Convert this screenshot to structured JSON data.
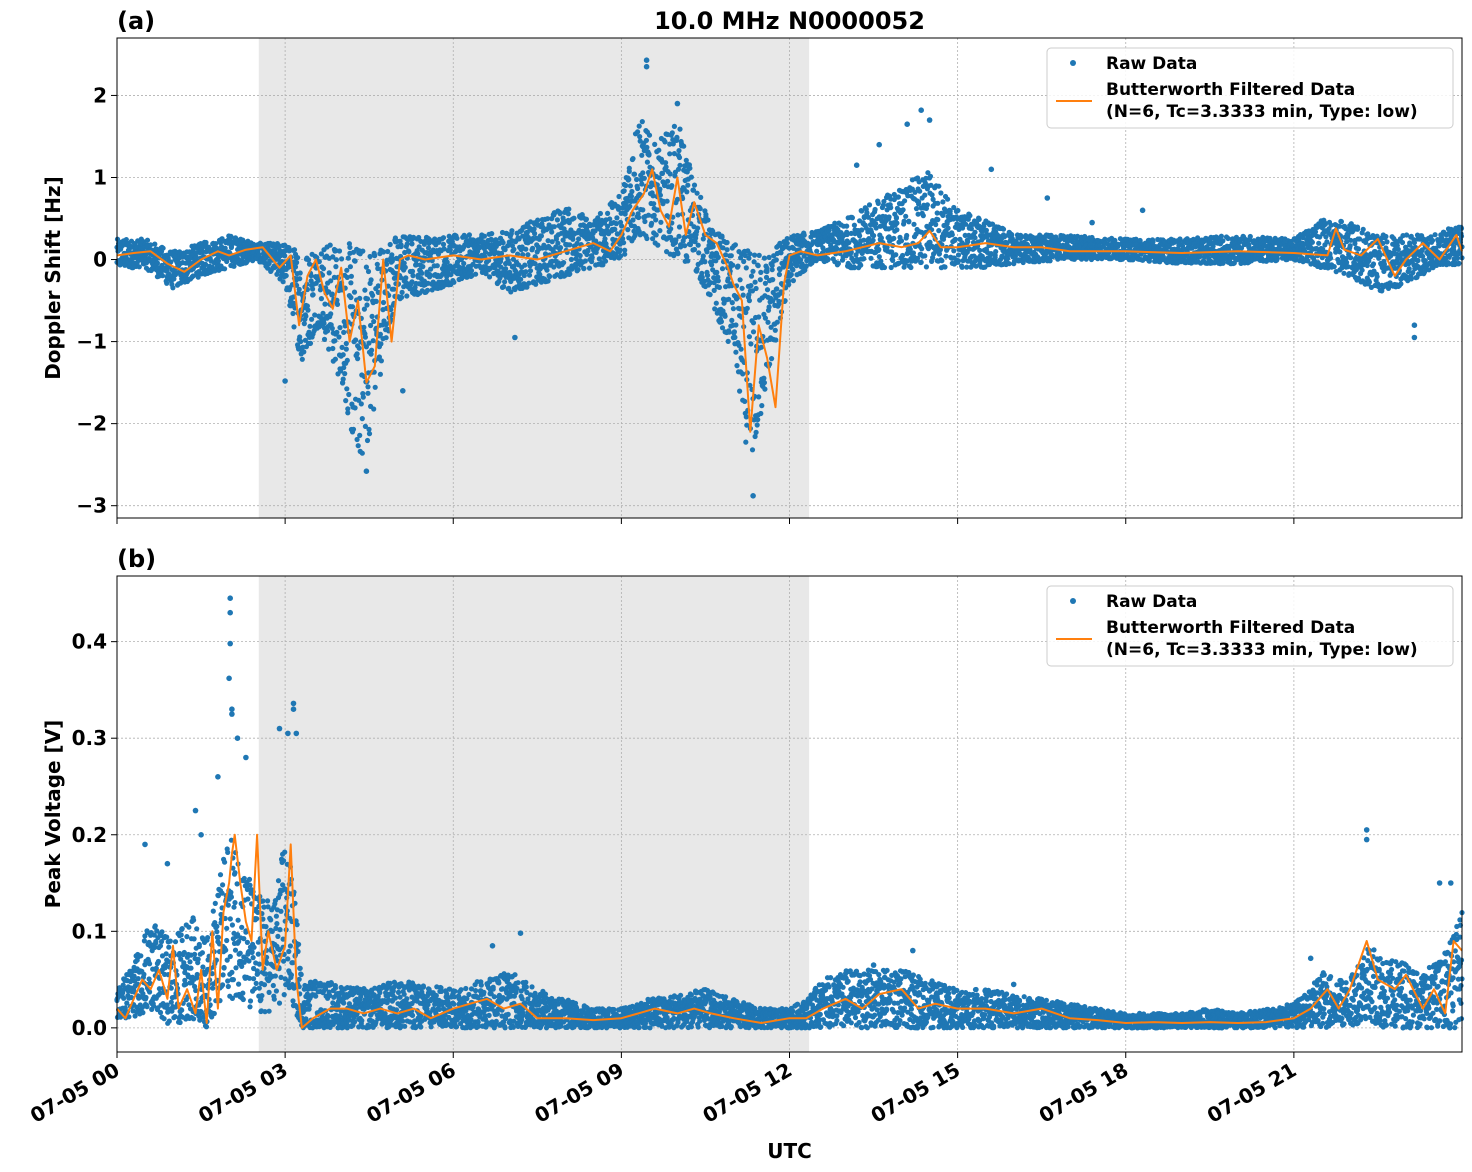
{
  "figure": {
    "xlabel": "UTC",
    "colors": {
      "raw": "#1f77b4",
      "filtered": "#ff7f0e",
      "shade": "#e8e8e8",
      "grid": "#b0b0b0"
    }
  },
  "chart_data": [
    {
      "type": "scatter",
      "panel_label": "(a)",
      "title": "10.0 MHz N0000052",
      "ylabel": "Doppler Shift [Hz]",
      "ylim": [
        -3.15,
        2.7
      ],
      "yticks": [
        2,
        1,
        0,
        -1,
        -2,
        -3
      ],
      "ytick_labels": [
        "2",
        "1",
        "0",
        "−1",
        "−2",
        "−3"
      ],
      "xlim_hours": [
        0,
        24
      ],
      "xticks_hours": [
        0,
        3,
        6,
        9,
        12,
        15,
        18,
        21
      ],
      "xtick_labels": [
        "07-05 00",
        "07-05 03",
        "07-05 06",
        "07-05 09",
        "07-05 12",
        "07-05 15",
        "07-05 18",
        "07-05 21"
      ],
      "shaded_interval_hours": [
        2.53,
        12.35
      ],
      "grid": true,
      "legend_position": "top-right",
      "legend": [
        "Raw Data",
        "Butterworth Filtered Data",
        "(N=6, Tc=3.3333 min, Type: low)"
      ],
      "series": [
        {
          "name": "Raw Data",
          "style": "points",
          "band": {
            "x": [
              0,
              0.5,
              1,
              1.5,
              2,
              2.5,
              3,
              3.3,
              3.6,
              4,
              4.3,
              4.5,
              4.8,
              5,
              5.5,
              6,
              6.5,
              7,
              7.5,
              8,
              8.5,
              9,
              9.3,
              9.6,
              10,
              10.3,
              10.6,
              11,
              11.3,
              11.6,
              12,
              12.5,
              13,
              13.5,
              14,
              14.5,
              15,
              15.5,
              16,
              17,
              18,
              19,
              20,
              21,
              21.5,
              22,
              22.5,
              23,
              23.5,
              24
            ],
            "low": [
              -0.1,
              -0.1,
              -0.35,
              -0.2,
              -0.1,
              0.0,
              -0.3,
              -1.3,
              -0.8,
              -1.5,
              -2.5,
              -2.2,
              -1.0,
              -0.5,
              -0.4,
              -0.3,
              -0.15,
              -0.4,
              -0.3,
              -0.2,
              -0.1,
              0.0,
              0.3,
              0.2,
              0.0,
              -0.1,
              -0.5,
              -1.2,
              -2.6,
              -1.5,
              -0.3,
              0.0,
              -0.1,
              -0.1,
              -0.1,
              -0.1,
              -0.1,
              -0.1,
              -0.05,
              0.0,
              0.0,
              -0.05,
              -0.05,
              0.0,
              -0.1,
              -0.2,
              -0.4,
              -0.3,
              -0.1,
              -0.05
            ],
            "high": [
              0.25,
              0.25,
              0.1,
              0.2,
              0.3,
              0.2,
              0.2,
              0.1,
              0.2,
              0.2,
              0.2,
              0.2,
              0.2,
              0.3,
              0.3,
              0.3,
              0.3,
              0.35,
              0.5,
              0.65,
              0.5,
              0.8,
              1.8,
              1.4,
              1.7,
              1.0,
              0.4,
              0.2,
              0.1,
              0.1,
              0.3,
              0.35,
              0.5,
              0.7,
              0.9,
              1.1,
              0.6,
              0.5,
              0.3,
              0.3,
              0.25,
              0.25,
              0.3,
              0.25,
              0.5,
              0.45,
              0.3,
              0.3,
              0.3,
              0.45
            ]
          },
          "outliers": [
            [
              9.45,
              2.43
            ],
            [
              9.45,
              2.35
            ],
            [
              10.0,
              1.9
            ],
            [
              14.35,
              1.82
            ],
            [
              14.5,
              1.7
            ],
            [
              14.1,
              1.65
            ],
            [
              13.6,
              1.4
            ],
            [
              13.2,
              1.15
            ],
            [
              15.6,
              1.1
            ],
            [
              16.6,
              0.75
            ],
            [
              23.15,
              -0.95
            ],
            [
              23.15,
              -0.8
            ],
            [
              11.35,
              -2.88
            ],
            [
              4.45,
              -2.58
            ],
            [
              3.0,
              -1.48
            ],
            [
              5.1,
              -1.6
            ],
            [
              7.1,
              -0.95
            ],
            [
              18.3,
              0.6
            ],
            [
              17.4,
              0.45
            ]
          ]
        },
        {
          "name": "Butterworth Filtered Data",
          "style": "line",
          "x": [
            0,
            0.3,
            0.6,
            0.9,
            1.2,
            1.5,
            1.8,
            2.0,
            2.3,
            2.6,
            2.9,
            3.1,
            3.25,
            3.4,
            3.55,
            3.7,
            3.85,
            4.0,
            4.15,
            4.3,
            4.45,
            4.6,
            4.75,
            4.9,
            5.05,
            5.2,
            5.5,
            6.0,
            6.5,
            7.0,
            7.5,
            8.0,
            8.5,
            8.8,
            9.0,
            9.2,
            9.4,
            9.55,
            9.7,
            9.85,
            10.0,
            10.15,
            10.3,
            10.5,
            10.7,
            10.9,
            11.0,
            11.15,
            11.3,
            11.45,
            11.6,
            11.75,
            11.9,
            12.0,
            12.2,
            12.5,
            13.0,
            13.3,
            13.6,
            14.0,
            14.3,
            14.5,
            14.7,
            15.0,
            15.5,
            16.0,
            16.5,
            17.0,
            18.0,
            19.0,
            20.0,
            21.0,
            21.6,
            21.75,
            21.9,
            22.2,
            22.5,
            22.8,
            23.0,
            23.3,
            23.6,
            23.9,
            24.0
          ],
          "y": [
            0.05,
            0.08,
            0.1,
            -0.05,
            -0.15,
            0.0,
            0.1,
            0.05,
            0.12,
            0.15,
            -0.1,
            0.05,
            -0.8,
            -0.2,
            0.0,
            -0.4,
            -0.6,
            -0.1,
            -1.0,
            -0.5,
            -1.5,
            -1.3,
            0.0,
            -1.0,
            0.0,
            0.05,
            0.0,
            0.05,
            0.0,
            0.05,
            0.0,
            0.1,
            0.2,
            0.1,
            0.3,
            0.6,
            0.8,
            1.1,
            0.6,
            0.4,
            1.0,
            0.3,
            0.7,
            0.3,
            0.2,
            -0.1,
            -0.3,
            -0.5,
            -2.1,
            -0.8,
            -1.2,
            -1.8,
            -0.3,
            0.05,
            0.1,
            0.05,
            0.1,
            0.15,
            0.2,
            0.15,
            0.2,
            0.35,
            0.15,
            0.15,
            0.2,
            0.15,
            0.15,
            0.1,
            0.1,
            0.08,
            0.1,
            0.08,
            0.05,
            0.38,
            0.12,
            0.05,
            0.25,
            -0.2,
            0.0,
            0.2,
            0.0,
            0.3,
            0.1
          ]
        }
      ]
    },
    {
      "type": "scatter",
      "panel_label": "(b)",
      "ylabel": "Peak Voltage [V]",
      "ylim": [
        -0.025,
        0.468
      ],
      "yticks": [
        0.4,
        0.3,
        0.2,
        0.1,
        0.0
      ],
      "ytick_labels": [
        "0.4",
        "0.3",
        "0.2",
        "0.1",
        "0.0"
      ],
      "xlim_hours": [
        0,
        24
      ],
      "xticks_hours": [
        0,
        3,
        6,
        9,
        12,
        15,
        18,
        21
      ],
      "xtick_labels": [
        "07-05 00",
        "07-05 03",
        "07-05 06",
        "07-05 09",
        "07-05 12",
        "07-05 15",
        "07-05 18",
        "07-05 21"
      ],
      "shaded_interval_hours": [
        2.53,
        12.35
      ],
      "grid": true,
      "legend_position": "top-right",
      "legend": [
        "Raw Data",
        "Butterworth Filtered Data",
        "(N=6, Tc=3.3333 min, Type: low)"
      ],
      "series": [
        {
          "name": "Raw Data",
          "style": "points",
          "band": {
            "x": [
              0,
              0.3,
              0.6,
              1.0,
              1.3,
              1.6,
              1.8,
              2.0,
              2.2,
              2.5,
              2.8,
              3.0,
              3.15,
              3.3,
              3.6,
              4.0,
              4.5,
              5.0,
              5.5,
              6.0,
              6.5,
              7.0,
              7.5,
              8.0,
              8.5,
              9.0,
              9.5,
              10.0,
              10.5,
              11.0,
              11.5,
              12.0,
              12.3,
              12.6,
              13.0,
              13.5,
              14.0,
              14.5,
              15.0,
              15.5,
              16.0,
              16.5,
              17.0,
              17.5,
              18.0,
              18.5,
              19.0,
              19.5,
              20.0,
              20.5,
              21.0,
              21.3,
              21.5,
              21.8,
              22.0,
              22.3,
              22.6,
              23.0,
              23.3,
              23.6,
              23.8,
              24.0
            ],
            "low": [
              0.01,
              0.01,
              0.02,
              0.0,
              0.01,
              0.0,
              0.02,
              0.03,
              0.03,
              0.01,
              0.02,
              0.03,
              0.02,
              0.0,
              0.0,
              0.0,
              0.0,
              0.0,
              0.0,
              0.0,
              0.0,
              0.0,
              0.0,
              0.0,
              0.0,
              0.0,
              0.0,
              0.0,
              0.0,
              0.0,
              0.0,
              0.0,
              0.0,
              0.0,
              0.0,
              0.0,
              0.0,
              0.0,
              0.0,
              0.0,
              0.0,
              0.0,
              0.0,
              0.0,
              0.0,
              0.0,
              0.0,
              0.0,
              0.0,
              0.0,
              0.0,
              0.0,
              0.0,
              0.0,
              0.0,
              0.01,
              0.0,
              0.0,
              0.0,
              0.0,
              0.0,
              0.0
            ],
            "high": [
              0.04,
              0.07,
              0.11,
              0.09,
              0.12,
              0.09,
              0.15,
              0.2,
              0.18,
              0.14,
              0.13,
              0.2,
              0.15,
              0.05,
              0.05,
              0.045,
              0.04,
              0.05,
              0.045,
              0.04,
              0.05,
              0.06,
              0.04,
              0.03,
              0.02,
              0.02,
              0.03,
              0.035,
              0.04,
              0.03,
              0.02,
              0.02,
              0.03,
              0.05,
              0.06,
              0.06,
              0.06,
              0.05,
              0.04,
              0.04,
              0.035,
              0.03,
              0.025,
              0.02,
              0.015,
              0.015,
              0.015,
              0.02,
              0.015,
              0.02,
              0.025,
              0.04,
              0.06,
              0.05,
              0.05,
              0.09,
              0.07,
              0.07,
              0.06,
              0.07,
              0.09,
              0.12
            ]
          },
          "outliers": [
            [
              2.02,
              0.445
            ],
            [
              2.02,
              0.43
            ],
            [
              2.02,
              0.398
            ],
            [
              2.0,
              0.362
            ],
            [
              2.05,
              0.33
            ],
            [
              2.05,
              0.325
            ],
            [
              2.15,
              0.3
            ],
            [
              3.15,
              0.336
            ],
            [
              3.15,
              0.33
            ],
            [
              2.9,
              0.31
            ],
            [
              3.05,
              0.305
            ],
            [
              3.2,
              0.305
            ],
            [
              2.3,
              0.28
            ],
            [
              1.8,
              0.26
            ],
            [
              1.4,
              0.225
            ],
            [
              1.5,
              0.2
            ],
            [
              0.5,
              0.19
            ],
            [
              0.9,
              0.17
            ],
            [
              6.7,
              0.085
            ],
            [
              7.2,
              0.098
            ],
            [
              22.3,
              0.205
            ],
            [
              22.3,
              0.195
            ],
            [
              23.8,
              0.15
            ],
            [
              23.6,
              0.15
            ],
            [
              21.3,
              0.072
            ],
            [
              13.5,
              0.065
            ],
            [
              14.2,
              0.08
            ],
            [
              16.0,
              0.045
            ]
          ]
        },
        {
          "name": "Butterworth Filtered Data",
          "style": "line",
          "x": [
            0,
            0.15,
            0.3,
            0.45,
            0.6,
            0.75,
            0.9,
            1.0,
            1.1,
            1.25,
            1.4,
            1.5,
            1.6,
            1.7,
            1.8,
            1.9,
            2.0,
            2.05,
            2.1,
            2.2,
            2.3,
            2.4,
            2.5,
            2.6,
            2.7,
            2.85,
            3.0,
            3.1,
            3.2,
            3.3,
            3.5,
            3.8,
            4.1,
            4.4,
            4.7,
            5.0,
            5.3,
            5.6,
            6.0,
            6.3,
            6.6,
            6.9,
            7.2,
            7.5,
            8.0,
            8.5,
            9.0,
            9.3,
            9.6,
            10.0,
            10.3,
            10.6,
            11.0,
            11.5,
            12.0,
            12.3,
            12.6,
            13.0,
            13.3,
            13.6,
            14.0,
            14.3,
            14.6,
            15.0,
            15.5,
            16.0,
            16.5,
            17.0,
            17.5,
            18.0,
            18.5,
            19.0,
            19.5,
            20.0,
            20.5,
            21.0,
            21.3,
            21.6,
            21.8,
            22.0,
            22.3,
            22.5,
            22.8,
            23.0,
            23.3,
            23.5,
            23.7,
            23.85,
            24.0
          ],
          "y": [
            0.02,
            0.01,
            0.03,
            0.05,
            0.04,
            0.06,
            0.03,
            0.085,
            0.02,
            0.04,
            0.015,
            0.06,
            0.005,
            0.1,
            0.02,
            0.12,
            0.15,
            0.18,
            0.2,
            0.15,
            0.11,
            0.09,
            0.2,
            0.06,
            0.1,
            0.06,
            0.085,
            0.19,
            0.05,
            0.0,
            0.01,
            0.02,
            0.02,
            0.015,
            0.02,
            0.015,
            0.02,
            0.01,
            0.02,
            0.025,
            0.03,
            0.02,
            0.025,
            0.01,
            0.01,
            0.008,
            0.01,
            0.015,
            0.02,
            0.015,
            0.02,
            0.015,
            0.01,
            0.005,
            0.01,
            0.01,
            0.02,
            0.03,
            0.02,
            0.035,
            0.04,
            0.02,
            0.025,
            0.02,
            0.02,
            0.015,
            0.02,
            0.01,
            0.008,
            0.005,
            0.006,
            0.005,
            0.006,
            0.005,
            0.006,
            0.01,
            0.02,
            0.04,
            0.02,
            0.04,
            0.09,
            0.05,
            0.04,
            0.055,
            0.02,
            0.04,
            0.015,
            0.09,
            0.08
          ]
        }
      ]
    }
  ]
}
